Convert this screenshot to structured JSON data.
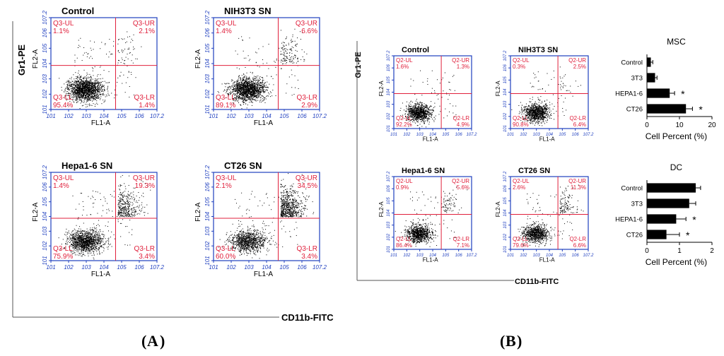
{
  "panels": {
    "A": {
      "letter": "A",
      "y_axis_label": "Gr1-PE",
      "x_axis_label": "CD11b-FITC",
      "plots": [
        {
          "title": "Control",
          "quadrants": {
            "ul": "Q3-UL",
            "ul_val": "1.1%",
            "ur": "Q3-UR",
            "ur_val": "2.1%",
            "ll": "Q3-LL",
            "ll_val": "95.4%",
            "lr": "Q3-LR",
            "lr_val": "1.4%"
          },
          "x_label": "FL1-A",
          "y_label": "FL2-A"
        },
        {
          "title": "NIH3T3  SN",
          "quadrants": {
            "ul": "Q3-UL",
            "ul_val": "1.4%",
            "ur": "Q3-UR",
            "ur_val": "6.6%",
            "ll": "Q3-LL",
            "ll_val": "89.1%",
            "lr": "Q3-LR",
            "lr_val": "2.9%"
          },
          "x_label": "FL1-A",
          "y_label": "FL2-A"
        },
        {
          "title": "Hepa1-6 SN",
          "quadrants": {
            "ul": "Q3-UL",
            "ul_val": "1.4%",
            "ur": "Q3-UR",
            "ur_val": "19.3%",
            "ll": "Q3-LL",
            "ll_val": "75.9%",
            "lr": "Q3-LR",
            "lr_val": "3.4%"
          },
          "x_label": "FL1-A",
          "y_label": "FL2-A"
        },
        {
          "title": "CT26  SN",
          "quadrants": {
            "ul": "Q3-UL",
            "ul_val": "2.1%",
            "ur": "Q3-UR",
            "ur_val": "34.5%",
            "ll": "Q3-LL",
            "ll_val": "60.0%",
            "lr": "Q3-LR",
            "lr_val": "3.4%"
          },
          "x_label": "FL1-A",
          "y_label": "FL2-A"
        }
      ]
    },
    "B": {
      "letter": "B",
      "y_axis_label": "Gr1-PE",
      "x_axis_label": "CD11b-FITC",
      "plots": [
        {
          "title": "Control",
          "quadrants": {
            "ul": "Q2-UL",
            "ul_val": "1.6%",
            "ur": "Q2-UR",
            "ur_val": "1.3%",
            "ll": "Q2-LL",
            "ll_val": "92.2%",
            "lr": "Q2-LR",
            "lr_val": "4.9%"
          },
          "x_label": "FL1-A",
          "y_label": "FL2-A"
        },
        {
          "title": "NIH3T3  SN",
          "quadrants": {
            "ul": "Q2-UL",
            "ul_val": "0.3%",
            "ur": "Q2-UR",
            "ur_val": "2.5%",
            "ll": "Q2-LL",
            "ll_val": "90.8%",
            "lr": "Q2-LR",
            "lr_val": "6.4%"
          },
          "x_label": "FL1-A",
          "y_label": "FL2-A"
        },
        {
          "title": "Hepa1-6  SN",
          "quadrants": {
            "ul": "Q2-UL",
            "ul_val": "0.9%",
            "ur": "Q2-UR",
            "ur_val": "5.6%",
            "ll": "Q2-LL",
            "ll_val": "86.4%",
            "lr": "Q2-LR",
            "lr_val": "7.1%"
          },
          "x_label": "FL1-A",
          "y_label": "FL2-A"
        },
        {
          "title": "CT26  SN",
          "quadrants": {
            "ul": "Q2-UL",
            "ul_val": "2.6%",
            "ur": "Q2-UR",
            "ur_val": "11.3%",
            "ll": "Q2-LL",
            "ll_val": "79.6%",
            "lr": "Q2-LR",
            "lr_val": "6.6%"
          },
          "x_label": "FL1-A",
          "y_label": "FL2-A"
        }
      ]
    }
  },
  "tick_labels": [
    "10^1",
    "10^2",
    "10^3",
    "10^4",
    "10^5",
    "10^6",
    "10^7.2"
  ],
  "colors": {
    "axis": "#1f3fbf",
    "gate": "#e0203c",
    "quad_text": "#e0203c",
    "dots": "#000000",
    "bar": "#000000"
  },
  "chart_data": [
    {
      "type": "bar",
      "orientation": "horizontal",
      "title": "MSC",
      "categories": [
        "Control",
        "3T3",
        "HEPA1-6",
        "CT26"
      ],
      "values": [
        1.2,
        2.5,
        7.0,
        12.0
      ],
      "errors": [
        0.6,
        0.6,
        1.5,
        2.0
      ],
      "significance": [
        "",
        "",
        "*",
        "*"
      ],
      "xlabel": "Cell Percent (%)",
      "xlim": [
        0,
        20
      ],
      "xticks": [
        0,
        10,
        20
      ]
    },
    {
      "type": "bar",
      "orientation": "horizontal",
      "title": "DC",
      "categories": [
        "Control",
        "3T3",
        "HEPA1-6",
        "CT26"
      ],
      "values": [
        1.5,
        1.3,
        0.9,
        0.6
      ],
      "errors": [
        0.15,
        0.2,
        0.3,
        0.4
      ],
      "significance": [
        "",
        "",
        "*",
        "*"
      ],
      "xlabel": "Cell Percent (%)",
      "xlim": [
        0,
        2
      ],
      "xticks": [
        0,
        1,
        2
      ]
    }
  ]
}
